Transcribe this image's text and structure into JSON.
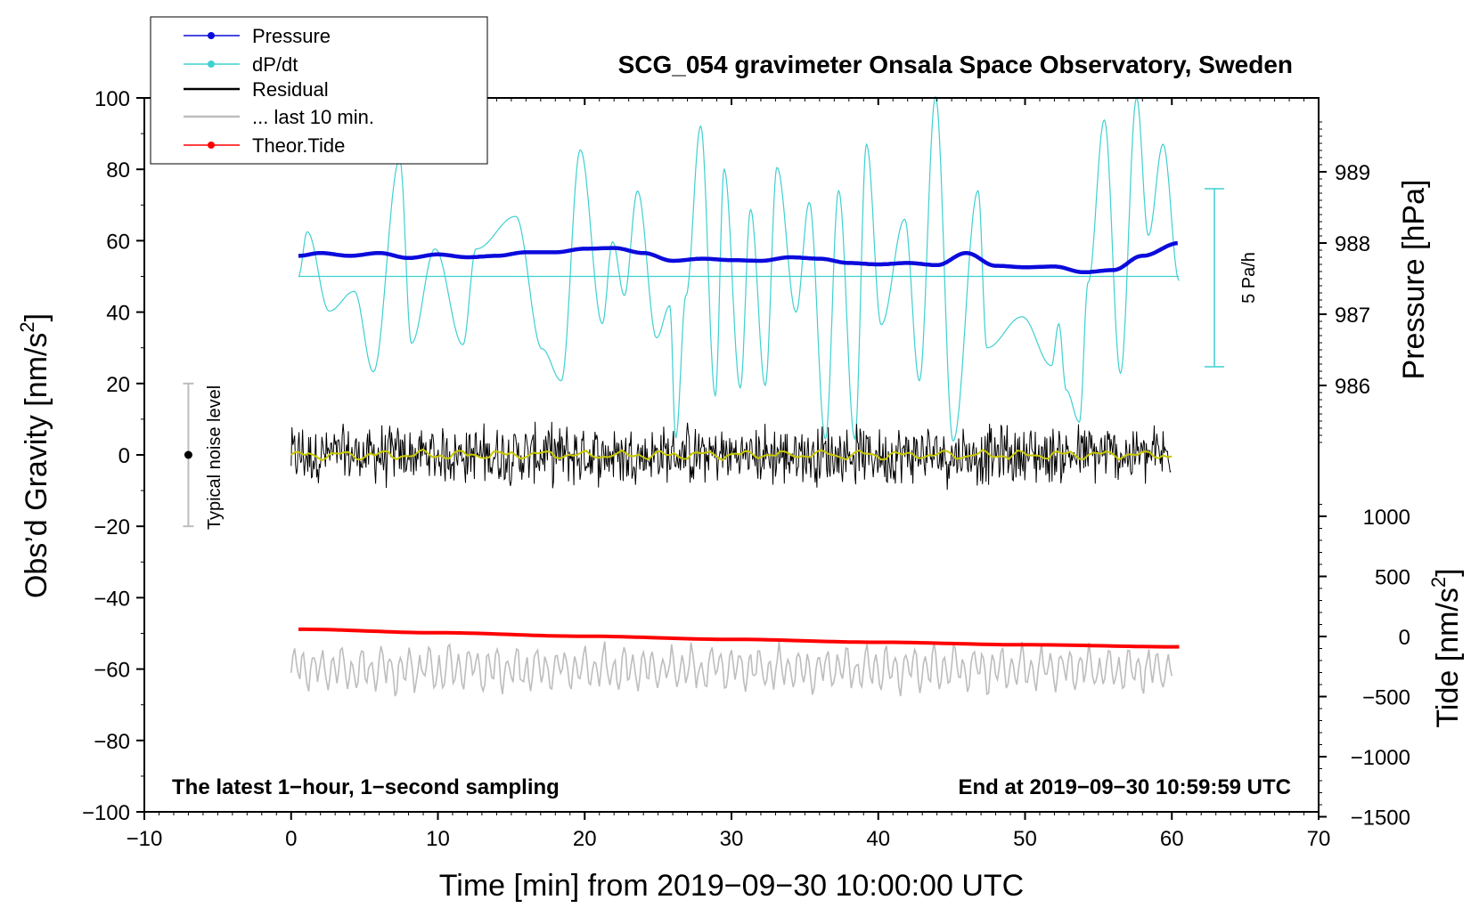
{
  "chart_data": {
    "type": "line",
    "title": "SCG_054 gravimeter Onsala Space Observatory, Sweden",
    "xlabel": "Time [min] from 2019−09−30 10:00:00 UTC",
    "ylabel_left": "Obs’d Gravity [nm/s",
    "ylabel_left_sup": "2",
    "ylabel_left_end": "]",
    "ylabel_right_pressure": "Pressure [hPa]",
    "ylabel_right_tide": "Tide [nm/s",
    "ylabel_right_tide_sup": "2",
    "ylabel_right_tide_end": "]",
    "xlim": [
      -10,
      70
    ],
    "ylim": [
      -100,
      100
    ],
    "x_ticks": [
      "−10",
      "0",
      "10",
      "20",
      "30",
      "40",
      "50",
      "60",
      "70"
    ],
    "y_ticks": [
      "100",
      "80",
      "60",
      "40",
      "20",
      "0",
      "−20",
      "−40",
      "−60",
      "−80",
      "−100"
    ],
    "pressure_ticks": [
      "989",
      "988",
      "987",
      "986"
    ],
    "pressure_tick_values": [
      989,
      988,
      987,
      986
    ],
    "tide_ticks": [
      "1000",
      "500",
      "0",
      "−500",
      "−1000",
      "−1500"
    ],
    "tide_tick_values": [
      1000,
      500,
      0,
      -500,
      -1000,
      -1500
    ],
    "note_left": "The latest 1−hour, 1−second sampling",
    "note_right": "End at 2019−09−30 10:59:59 UTC",
    "noise_label": "Typical noise level",
    "noise_bar": {
      "x": -7,
      "low": -20,
      "high": 20,
      "center": 0
    },
    "rate_label": "5 Pa/h",
    "legend": [
      "Pressure",
      "dP/dt",
      "Residual",
      "... last 10 min.",
      "Theor.Tide"
    ],
    "colors": {
      "pressure": "#0b0bdc",
      "dpdt": "#3fd0d0",
      "residual": "#000000",
      "residual_smooth": "#c8c800",
      "last10": "#bdbdbd",
      "tide": "#ff0000",
      "noise": "#bdbdbd"
    },
    "series": [
      {
        "name": "Pressure",
        "axis": "pressure_hPa",
        "x": [
          0.5,
          2,
          4,
          6,
          8,
          10,
          12,
          14,
          16,
          18,
          20,
          22,
          24,
          26,
          28,
          30,
          32,
          34,
          36,
          38,
          40,
          42,
          44,
          46,
          48,
          50,
          52,
          54,
          56,
          58,
          60.5
        ],
        "values": [
          987.82,
          987.86,
          987.82,
          987.86,
          987.79,
          987.84,
          987.8,
          987.82,
          987.87,
          987.87,
          987.92,
          987.93,
          987.86,
          987.75,
          987.78,
          987.76,
          987.75,
          987.8,
          987.78,
          987.72,
          987.7,
          987.72,
          987.69,
          987.86,
          987.68,
          987.66,
          987.67,
          987.59,
          987.62,
          987.82,
          988.0
        ]
      },
      {
        "name": "dP/dt",
        "axis": "gravity_scaled",
        "x": [
          0.5,
          1.1,
          2.6,
          4.3,
          5.6,
          7.4,
          8.2,
          9.8,
          11.7,
          12.6,
          15.3,
          17.1,
          18.4,
          19.7,
          21.2,
          21.9,
          22.7,
          23.6,
          24.9,
          25.8,
          26.2,
          26.9,
          27.9,
          28.9,
          29.5,
          30.6,
          31.3,
          32.3,
          33.1,
          34.4,
          35.3,
          36.4,
          37.3,
          38.4,
          39.2,
          40.2,
          41.8,
          42.8,
          43.9,
          45.1,
          46.8,
          47.4,
          49.8,
          51.8,
          52.3,
          52.8,
          53.7,
          54.3,
          55.4,
          56.5,
          57.6,
          58.4,
          59.4,
          60.5
        ],
        "values": [
          50,
          62.5,
          40.3,
          45.8,
          23.3,
          82.8,
          31.3,
          57.7,
          30.9,
          57.7,
          66.8,
          29.7,
          20.8,
          85.4,
          36.8,
          59.7,
          44.7,
          73.9,
          32.8,
          41.8,
          4.7,
          44.7,
          92.1,
          16.6,
          80,
          18.8,
          68.7,
          19.5,
          80.5,
          40,
          70.7,
          4.5,
          74,
          4.5,
          87,
          36.5,
          66,
          20.8,
          100.3,
          3.9,
          74,
          30,
          38.7,
          25,
          36.7,
          18.2,
          9.2,
          48.4,
          93.8,
          22.9,
          100,
          61.5,
          87,
          48.8
        ]
      },
      {
        "name": "Residual",
        "axis": "gravity",
        "x": [
          0,
          60
        ],
        "values": [
          0,
          0
        ]
      },
      {
        "name": "... last 10 min.",
        "axis": "gravity",
        "x": [
          0,
          60
        ],
        "values": [
          -60,
          -60
        ]
      },
      {
        "name": "Theor.Tide",
        "axis": "tide_nm_s2",
        "x": [
          0.5,
          10,
          20,
          30,
          40,
          50,
          60.5
        ],
        "values": [
          60,
          31,
          2,
          -24,
          -48,
          -69,
          -86
        ]
      }
    ]
  }
}
